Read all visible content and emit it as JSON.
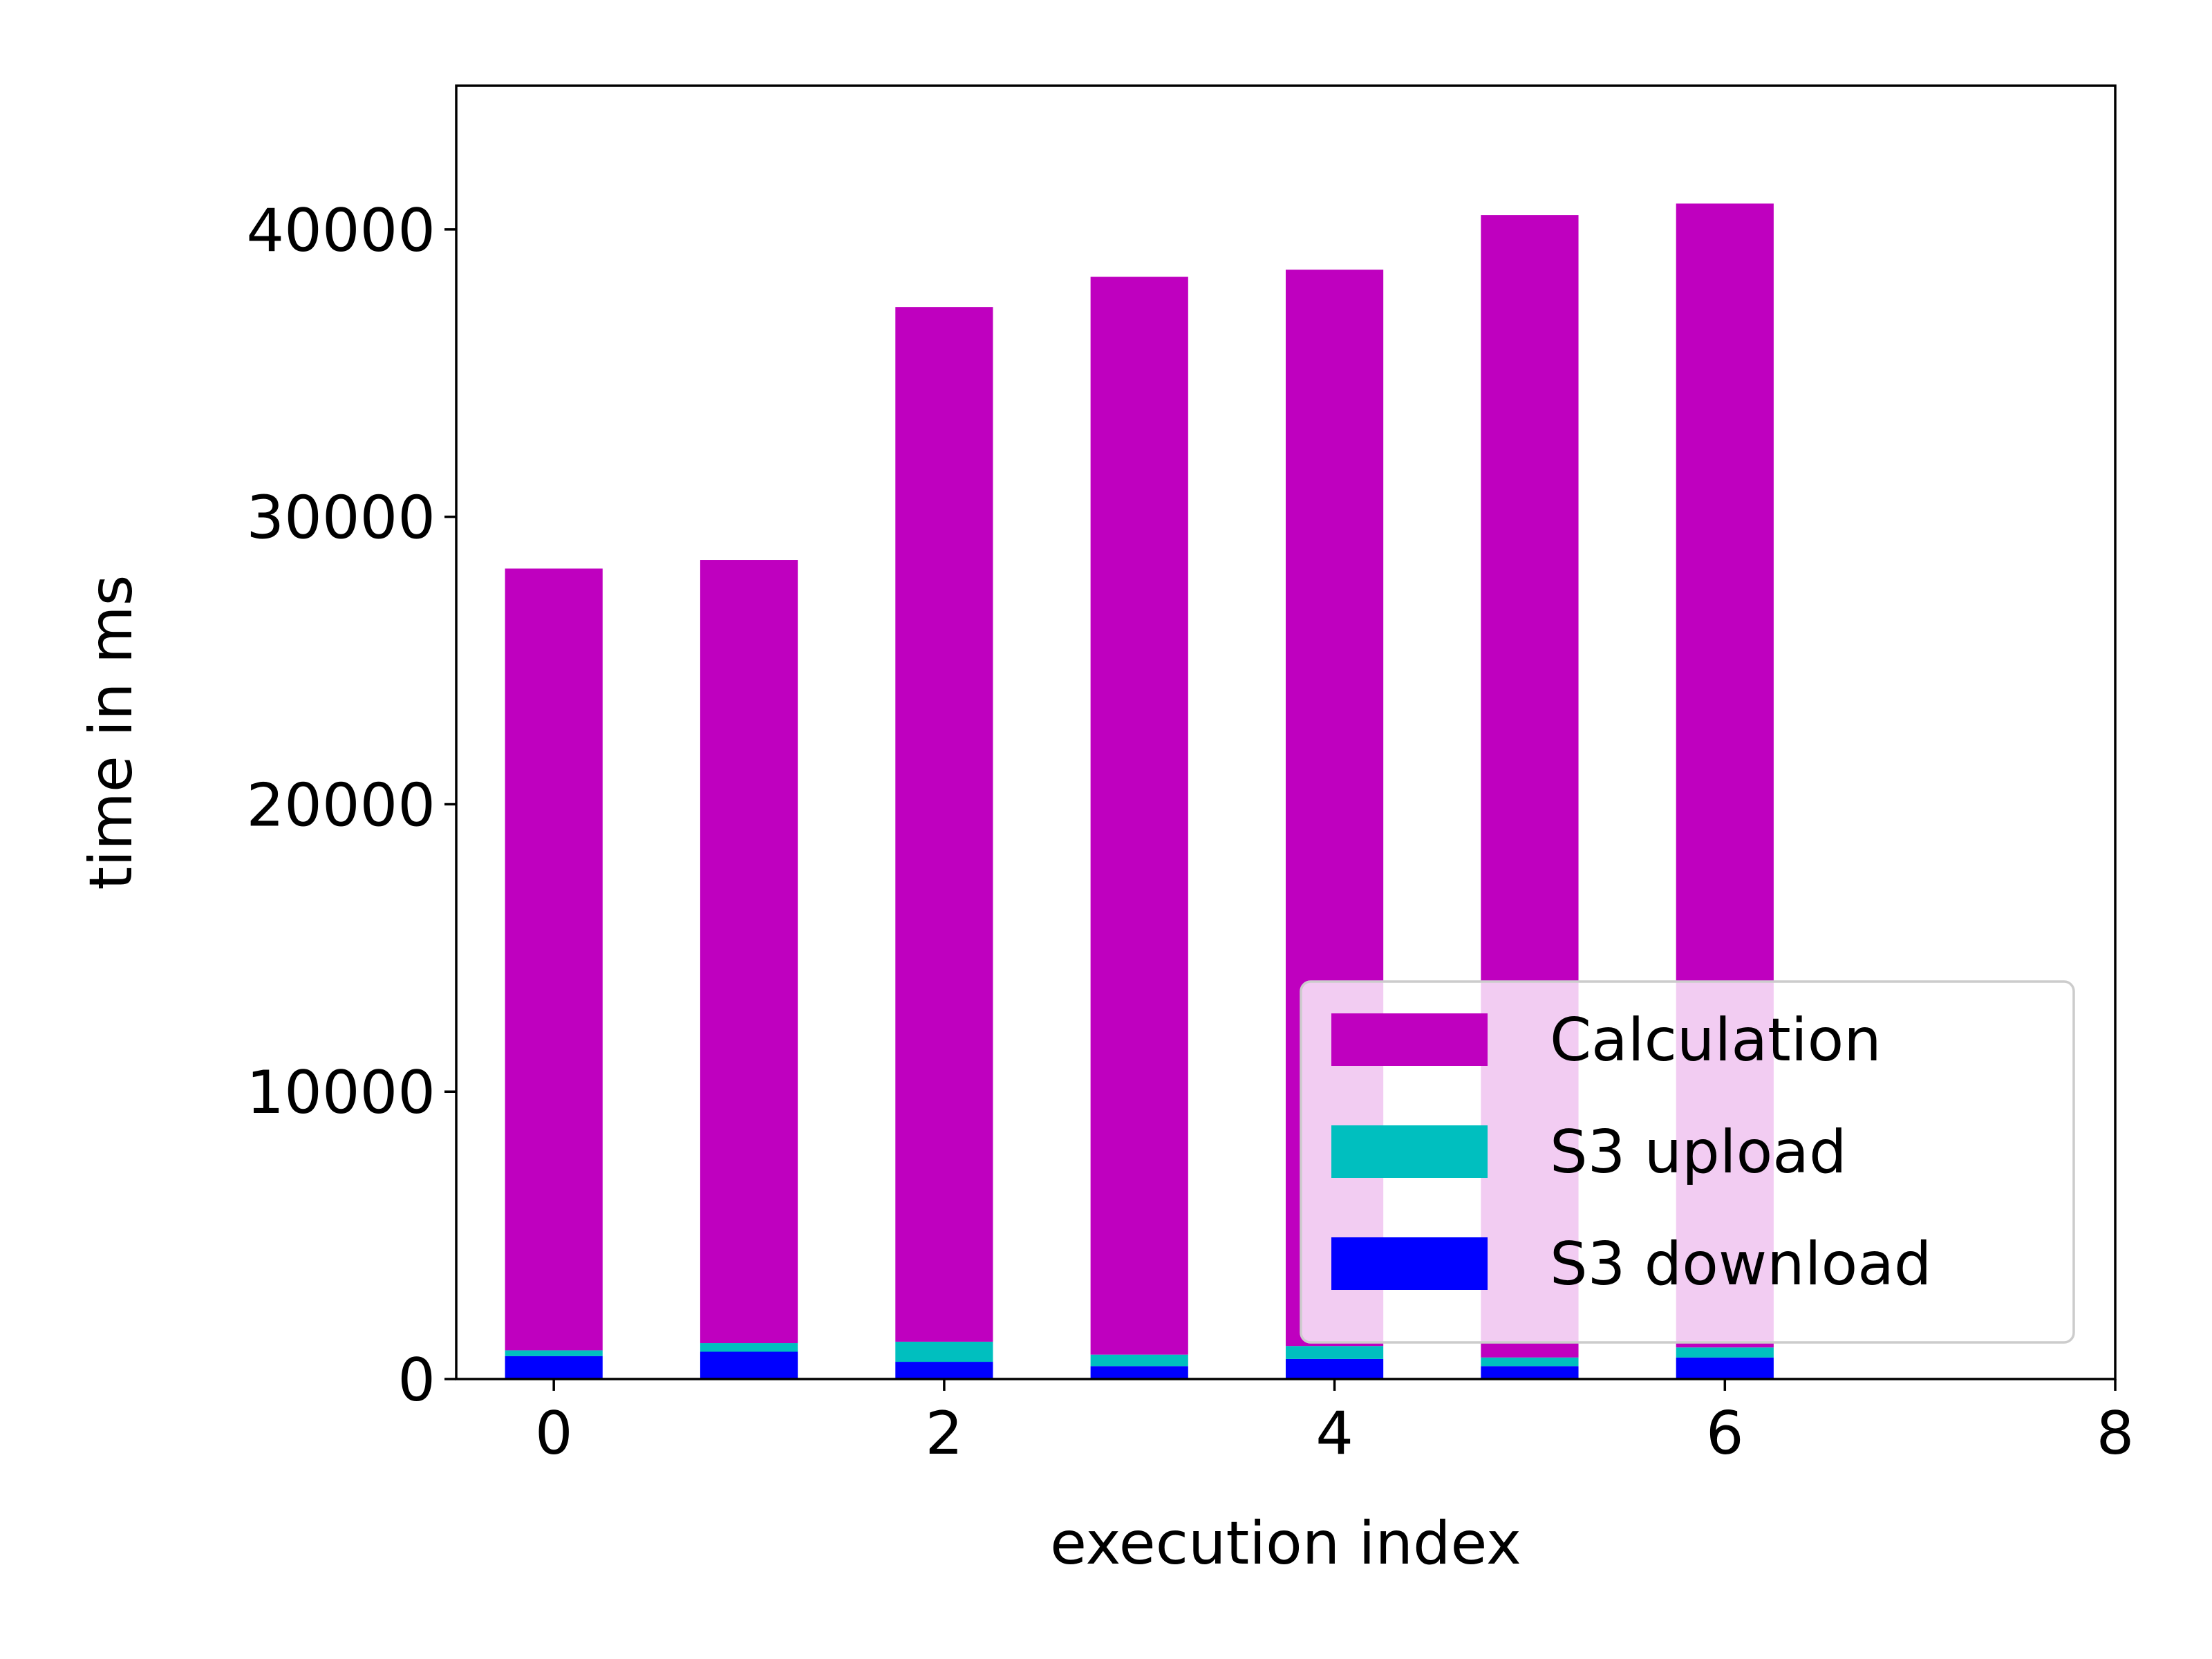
{
  "chart_data": {
    "type": "bar",
    "stacked": true,
    "title": "",
    "xlabel": "execution index",
    "ylabel": "time in ms",
    "x": [
      0,
      1,
      2,
      3,
      4,
      5,
      6
    ],
    "xlim": [
      -0.5,
      8
    ],
    "ylim": [
      0,
      45000
    ],
    "xticks": [
      0,
      2,
      4,
      6,
      8
    ],
    "yticks": [
      0,
      10000,
      20000,
      30000,
      40000
    ],
    "bar_width": 0.5,
    "series": [
      {
        "name": "S3 download",
        "color": "#0000ff",
        "values": [
          800,
          950,
          600,
          450,
          700,
          450,
          750
        ]
      },
      {
        "name": "S3 upload",
        "color": "#00bfbf",
        "values": [
          200,
          300,
          700,
          400,
          450,
          300,
          350
        ]
      },
      {
        "name": "Calculation",
        "color": "#bf00bf",
        "values": [
          27200,
          27250,
          36000,
          37500,
          37450,
          39750,
          39800
        ]
      }
    ],
    "legend": {
      "placement": "lower-right",
      "order": [
        "Calculation",
        "S3 upload",
        "S3 download"
      ]
    },
    "grid": false
  }
}
